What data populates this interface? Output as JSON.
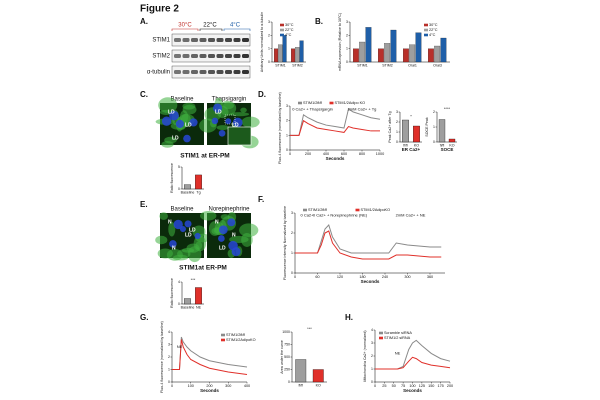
{
  "title": "Figure 2",
  "panels": {
    "A": {
      "label": "A.",
      "temps": [
        "30°C",
        "22°C",
        "4°C"
      ],
      "rows": [
        "STIM1",
        "STIM2",
        "α-tubulin"
      ],
      "chart": {
        "type": "bar",
        "ylabel": "Arbitrary Units normalized to α-tubulin",
        "categories": [
          "STIM1",
          "STIM2"
        ],
        "series": [
          {
            "name": "30°C",
            "color": "#b8302a",
            "values": [
              1,
              1
            ]
          },
          {
            "name": "22°C",
            "color": "#9e9e9e",
            "values": [
              1.3,
              1.1
            ]
          },
          {
            "name": "4°C",
            "color": "#1f5fa8",
            "values": [
              2.0,
              1.6
            ]
          }
        ],
        "ylim": [
          0,
          3
        ],
        "yticks": [
          0,
          1,
          2,
          3
        ],
        "legend": "top-right"
      }
    },
    "B": {
      "label": "B.",
      "chart": {
        "type": "bar",
        "ylabel": "mRNA expression (Relative to 30°C)",
        "categories": [
          "STIM1",
          "STIM2",
          "Orai1",
          "Orai3"
        ],
        "series": [
          {
            "name": "30°C",
            "color": "#b8302a",
            "values": [
              1,
              1,
              1,
              1
            ]
          },
          {
            "name": "22°C",
            "color": "#9e9e9e",
            "values": [
              1.5,
              1.4,
              1.3,
              1.2
            ]
          },
          {
            "name": "4°C",
            "color": "#1f5fa8",
            "values": [
              2.6,
              2.4,
              2.2,
              1.8
            ]
          }
        ],
        "ylim": [
          0,
          3
        ],
        "yticks": [
          0,
          1,
          2,
          3
        ],
        "legend": "top-right"
      }
    },
    "C": {
      "label": "C.",
      "images": [
        {
          "title": "Baseline",
          "marks": [
            "LD",
            "LD",
            "LD"
          ]
        },
        {
          "title": "Thapsigargin",
          "marks": [
            "LD",
            "LD"
          ]
        }
      ],
      "caption": "STIM1 at ER-PM",
      "chart": {
        "type": "bar",
        "ylabel": "Ratio fluorescence",
        "categories": [
          "Baseline",
          "Tg"
        ],
        "values": [
          1,
          3.2
        ],
        "colors": [
          "#9e9e9e",
          "#e0302a"
        ],
        "ylim": [
          0,
          5
        ],
        "yticks": [
          0,
          5
        ]
      }
    },
    "D": {
      "label": "D.",
      "chart": {
        "type": "line",
        "xlabel": "Seconds",
        "ylabel": "Fluo-4 fluorescence (normalized by baseline)",
        "x": [
          0,
          100,
          150,
          200,
          300,
          400,
          500,
          600,
          650,
          700,
          800,
          900,
          1000
        ],
        "series": [
          {
            "name": "STIM1/2fl/fl",
            "color": "#8a8a8a",
            "values": [
              1,
              1,
              2.4,
              2.2,
              1.9,
              1.7,
              1.6,
              1.5,
              2.8,
              2.6,
              2.4,
              2.2,
              2.1
            ]
          },
          {
            "name": "STIM1/2Adipo KO",
            "color": "#e0302a",
            "values": [
              1,
              1,
              2.0,
              1.8,
              1.5,
              1.4,
              1.3,
              1.2,
              1.6,
              1.5,
              1.4,
              1.3,
              1.3
            ]
          }
        ],
        "xlim": [
          0,
          1000
        ],
        "xticks": [
          0,
          200,
          400,
          600,
          800,
          1000
        ],
        "ylim": [
          0,
          3
        ],
        "yticks": [
          0,
          1,
          2,
          3
        ],
        "legend": "top",
        "annotations": [
          "0 Ca2+ + Thapsigargin",
          "2mM Ca2+ + Tg"
        ]
      },
      "bars": [
        {
          "type": "bar",
          "xlabel": "ER Ca2+",
          "ylabel": "Peak Ca2+ after Tg",
          "categories": [
            "fl/fl",
            "KO"
          ],
          "values": [
            2.2,
            1.6
          ],
          "colors": [
            "#9e9e9e",
            "#e0302a"
          ],
          "ylim": [
            0,
            3
          ],
          "yticks": [
            0,
            1,
            2,
            3
          ],
          "annotations": [
            "*"
          ]
        },
        {
          "type": "bar",
          "xlabel": "SOCE",
          "ylabel": "SOCE Peak",
          "categories": [
            "fl/fl",
            "KO"
          ],
          "values": [
            1.5,
            0.2
          ],
          "colors": [
            "#9e9e9e",
            "#e0302a"
          ],
          "ylim": [
            0,
            2
          ],
          "yticks": [
            0,
            1,
            2
          ],
          "annotations": [
            "****"
          ]
        }
      ]
    },
    "E": {
      "label": "E.",
      "images": [
        {
          "title": "Baseline",
          "marks": [
            "N",
            "LD",
            "N",
            "LD"
          ]
        },
        {
          "title": "Norepinephrine",
          "marks": [
            "N",
            "N",
            "LD"
          ]
        }
      ],
      "caption": "STIM1at ER-PM",
      "chart": {
        "type": "bar",
        "ylabel": "Ratio fluorescence",
        "categories": [
          "Baseline",
          "NE"
        ],
        "values": [
          1,
          3
        ],
        "colors": [
          "#9e9e9e",
          "#e0302a"
        ],
        "ylim": [
          0,
          4
        ],
        "yticks": [
          0,
          4
        ],
        "annotations": [
          "***"
        ]
      }
    },
    "F": {
      "label": "F.",
      "chart": {
        "type": "line",
        "xlabel": "Seconds",
        "ylabel": "Fluorescence intensity Normalized by baseline",
        "x": [
          0,
          60,
          70,
          80,
          90,
          100,
          120,
          150,
          180,
          240,
          250,
          270,
          300,
          360,
          390
        ],
        "series": [
          {
            "name": "STIM1/2fl/fl",
            "color": "#8a8a8a",
            "values": [
              1,
              1,
              1.6,
              2.2,
              2.4,
              1.8,
              1.2,
              1,
              1,
              1,
              1,
              1.5,
              1.4,
              1.3,
              1.3
            ]
          },
          {
            "name": "STIM1/2AdipoKO",
            "color": "#e0302a",
            "values": [
              1,
              1,
              1.4,
              2,
              2.1,
              1.5,
              1,
              0.8,
              0.7,
              0.7,
              0.7,
              0.9,
              0.9,
              0.8,
              0.8
            ]
          }
        ],
        "xlim": [
          0,
          400
        ],
        "xticks": [
          0,
          60,
          120,
          180,
          240,
          300,
          360
        ],
        "ylim": [
          0,
          3
        ],
        "yticks": [
          0,
          1,
          2,
          3
        ],
        "legend": "top",
        "annotations": [
          "0 Ca2+",
          "0 Ca2+ + Norepinephrine (NE)",
          "2mM Ca2+ + NE"
        ]
      }
    },
    "G": {
      "label": "G.",
      "chart": {
        "type": "line",
        "xlabel": "Seconds",
        "ylabel": "Fluo-4 fluorescence (normalized by baseline)",
        "x": [
          0,
          30,
          40,
          50,
          60,
          80,
          100,
          150,
          200,
          300,
          400
        ],
        "series": [
          {
            "name": "STIM1/2fl/fl",
            "color": "#8a8a8a",
            "values": [
              1,
              1,
              1,
              3.6,
              3.2,
              2.8,
              2.5,
              2,
              1.7,
              1.4,
              1.2
            ]
          },
          {
            "name": "STIM1/2AdipoKO",
            "color": "#e0302a",
            "values": [
              1,
              1,
              1,
              3.4,
              2.8,
              2.2,
              1.8,
              1.4,
              1.1,
              0.8,
              0.6
            ]
          }
        ],
        "xlim": [
          0,
          400
        ],
        "xticks": [
          0,
          100,
          200,
          300,
          400
        ],
        "ylim": [
          0,
          4
        ],
        "yticks": [
          0,
          1,
          2,
          3,
          4
        ],
        "legend": "top-right",
        "annotations": [
          "NE"
        ]
      },
      "bar": {
        "type": "bar",
        "ylabel": "Area under the curve",
        "categories": [
          "fl/fl",
          "KO"
        ],
        "values": [
          450,
          250
        ],
        "colors": [
          "#9e9e9e",
          "#e0302a"
        ],
        "ylim": [
          0,
          1000
        ],
        "yticks": [
          0,
          250,
          500,
          750,
          1000
        ],
        "annotations": [
          "***"
        ]
      }
    },
    "H": {
      "label": "H.",
      "chart": {
        "type": "line",
        "xlabel": "Seconds",
        "ylabel": "Mitochondria Ca2+ (normalized)",
        "x": [
          0,
          25,
          50,
          60,
          75,
          90,
          100,
          110,
          125,
          150,
          175,
          200
        ],
        "series": [
          {
            "name": "Scramble siRNA",
            "color": "#8a8a8a",
            "values": [
              1,
              1,
              1,
              1,
              1.2,
              2.5,
              3.0,
              3.2,
              2.8,
              2.2,
              1.8,
              1.6
            ]
          },
          {
            "name": "STIM1/2 siRNA",
            "color": "#e0302a",
            "values": [
              1,
              1,
              1,
              1,
              1.1,
              1.6,
              1.9,
              1.8,
              1.5,
              1.3,
              1.2,
              1.1
            ]
          }
        ],
        "xlim": [
          0,
          200
        ],
        "xticks": [
          0,
          25,
          50,
          75,
          100,
          125,
          150,
          175,
          200
        ],
        "ylim": [
          0,
          4
        ],
        "yticks": [
          0,
          1,
          2,
          3,
          4
        ],
        "legend": "top-left",
        "annotations": [
          "NE"
        ]
      }
    }
  }
}
